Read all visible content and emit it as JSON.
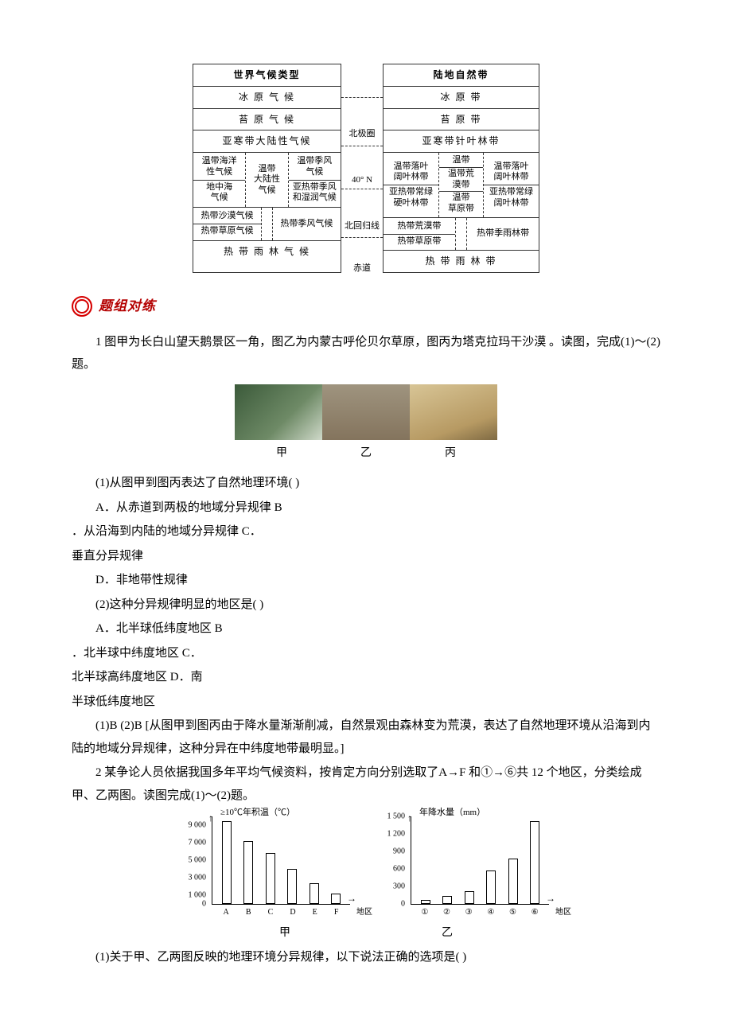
{
  "top": {
    "left": {
      "header": "世界气候类型",
      "rows_simple_top": [
        "冰 原 气 候",
        "苔 原 气 候",
        "亚寒带大陆性气候"
      ],
      "mid1": {
        "c1a": "温带海洋",
        "c1b": "性气候",
        "c2a": "温带",
        "c2b": "大陆性",
        "c2c": "气候",
        "c3a": "温带季风",
        "c3b": "气候"
      },
      "mid2": {
        "c1a": "地中海",
        "c1b": "气候",
        "c3a": "亚热带季风",
        "c3b": "和湿润气候"
      },
      "bot1": {
        "c1": "热带沙漠气候",
        "c3": "热带季风气候"
      },
      "bot2": {
        "c1": "热带草原气候"
      },
      "last": "热 带 雨 林 气 候"
    },
    "mid_labels": {
      "a": "北极圈",
      "b": "40° N",
      "c": "北回归线",
      "d": "赤道"
    },
    "right": {
      "header": "陆地自然带",
      "rows_simple_top": [
        "冰   原   带",
        "苔   原   带",
        "亚寒带针叶林带"
      ],
      "mid1": {
        "c1a": "温带落叶",
        "c1b": "阔叶林带",
        "c2a": "温带",
        "c2b": "温带荒",
        "c2c": "漠带",
        "c3a": "温带落叶",
        "c3b": "阔叶林带"
      },
      "mid2": {
        "c1a": "亚热带常绿",
        "c1b": "硬叶林带",
        "c2a": "温带",
        "c2b": "草原带",
        "c3a": "亚热带常绿",
        "c3b": "阔叶林带"
      },
      "bot1": {
        "c1": "热带荒漠带",
        "c3": "热带季雨林带"
      },
      "bot2": {
        "c1": "热带草原带"
      },
      "last": "热 带 雨 林 带"
    }
  },
  "section_header": "题组对练",
  "q1": {
    "stem": "1  图甲为长白山望天鹅景区一角，图乙为内蒙古呼伦贝尔草原，图丙为塔克拉玛干沙漠  。读图，完成(1)～(2)题。",
    "photo_labels": [
      "甲",
      "乙",
      "丙"
    ],
    "p1": "(1)从图甲到图丙表达了自然地理环境(      )",
    "p1a": "A．从赤道到两极的地域分异规律             B",
    "p1b": "．从沿海到内陆的地域分异规律             C．",
    "p1c": "垂直分异规律",
    "p1d": "D．非地带性规律",
    "p2": "(2)这种分异规律明显的地区是(      )",
    "p2a": "A．北半球低纬度地区                 B",
    "p2b": "．北半球中纬度地区                 C．",
    "p2c": "北半球高纬度地区                 D．南",
    "p2d": "半球低纬度地区",
    "ans": "(1)B   (2)B  [从图甲到图丙由于降水量渐渐削减，自然景观由森林变为荒漠，表达了自然地理环境从沿海到内陆的地域分异规律，这种分异在中纬度地带最明显。]"
  },
  "q2": {
    "stem": "2  某争论人员依据我国多年平均气候资料，按肯定方向分别选取了A→F 和①→⑥共 12 个地区，分类绘成甲、乙两图。读图完成(1)～(2)题。",
    "chart1": {
      "title": "≥10℃年积温（℃）",
      "y_ticks": [
        {
          "v": "9 000",
          "pos": 90
        },
        {
          "v": "7 000",
          "pos": 70
        },
        {
          "v": "5 000",
          "pos": 50
        },
        {
          "v": "3 000",
          "pos": 30
        },
        {
          "v": "1 000",
          "pos": 10
        },
        {
          "v": "0",
          "pos": 0
        }
      ],
      "x_labels": [
        "A",
        "B",
        "C",
        "D",
        "E",
        "F"
      ],
      "x_axis": "地区",
      "bars_pct": [
        95,
        72,
        58,
        40,
        24,
        12
      ]
    },
    "chart2": {
      "title": "年降水量（mm）",
      "y_ticks": [
        {
          "v": "1 500",
          "pos": 100
        },
        {
          "v": "1 200",
          "pos": 80
        },
        {
          "v": "900",
          "pos": 60
        },
        {
          "v": "600",
          "pos": 40
        },
        {
          "v": "300",
          "pos": 20
        },
        {
          "v": "0",
          "pos": 0
        }
      ],
      "x_labels": [
        "①",
        "②",
        "③",
        "④",
        "⑤",
        "⑥"
      ],
      "x_axis": "地区",
      "bars_pct": [
        5,
        9,
        15,
        38,
        52,
        95
      ]
    },
    "caption": [
      "甲",
      "乙"
    ],
    "p1": "(1)关于甲、乙两图反映的地理环境分异规律，以下说法正确的选项是(  )"
  }
}
